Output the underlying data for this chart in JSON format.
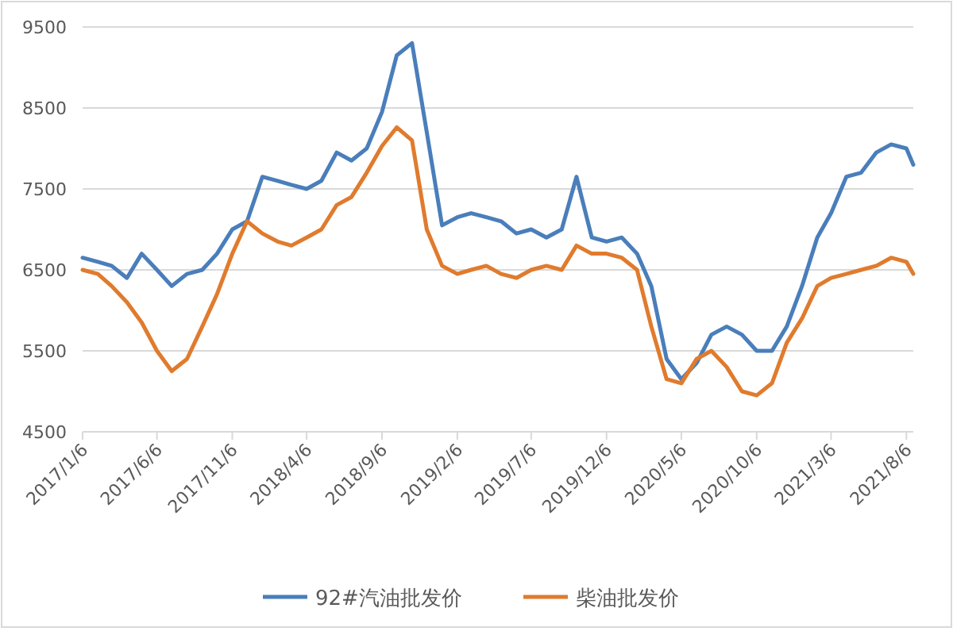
{
  "chart_data": {
    "type": "line",
    "x": [
      "2017-01-06",
      "2017-02-06",
      "2017-03-06",
      "2017-04-06",
      "2017-05-06",
      "2017-06-06",
      "2017-07-06",
      "2017-08-06",
      "2017-09-06",
      "2017-10-06",
      "2017-11-06",
      "2017-12-06",
      "2018-01-06",
      "2018-02-06",
      "2018-03-06",
      "2018-04-06",
      "2018-05-06",
      "2018-06-06",
      "2018-07-06",
      "2018-08-06",
      "2018-09-06",
      "2018-10-06",
      "2018-11-06",
      "2018-12-06",
      "2019-01-06",
      "2019-02-06",
      "2019-03-06",
      "2019-04-06",
      "2019-05-06",
      "2019-06-06",
      "2019-07-06",
      "2019-08-06",
      "2019-09-06",
      "2019-10-06",
      "2019-11-06",
      "2019-12-06",
      "2020-01-06",
      "2020-02-06",
      "2020-03-06",
      "2020-04-06",
      "2020-05-06",
      "2020-06-06",
      "2020-07-06",
      "2020-08-06",
      "2020-09-06",
      "2020-10-06",
      "2020-11-06",
      "2020-12-06",
      "2021-01-06",
      "2021-02-06",
      "2021-03-06",
      "2021-04-06",
      "2021-05-06",
      "2021-06-06",
      "2021-07-06",
      "2021-08-06",
      "2021-08-20"
    ],
    "series": [
      {
        "name": "92#汽油批发价",
        "color": "#4a7ebb",
        "values": [
          6650,
          6600,
          6550,
          6400,
          6700,
          6500,
          6300,
          6450,
          6500,
          6700,
          7000,
          7100,
          7650,
          7600,
          7550,
          7500,
          7600,
          7950,
          7850,
          8000,
          8450,
          9150,
          9300,
          8200,
          7050,
          7150,
          7200,
          7150,
          7100,
          6950,
          7000,
          6900,
          7000,
          7650,
          6900,
          6850,
          6900,
          6700,
          6300,
          5400,
          5150,
          5350,
          5700,
          5800,
          5700,
          5500,
          5500,
          5800,
          6300,
          6900,
          7200,
          7650,
          7700,
          7950,
          8050,
          8000,
          7800
        ]
      },
      {
        "name": "柴油批发价",
        "color": "#e07b2e",
        "values": [
          6500,
          6450,
          6300,
          6100,
          5850,
          5500,
          5250,
          5400,
          5800,
          6200,
          6700,
          7100,
          6950,
          6850,
          6800,
          6900,
          7000,
          7300,
          7400,
          7700,
          8030,
          8260,
          8100,
          7000,
          6550,
          6450,
          6500,
          6550,
          6450,
          6400,
          6500,
          6550,
          6500,
          6800,
          6700,
          6700,
          6650,
          6500,
          5800,
          5150,
          5100,
          5400,
          5500,
          5300,
          5000,
          4950,
          5100,
          5600,
          5900,
          6300,
          6400,
          6450,
          6500,
          6550,
          6650,
          6600,
          6450
        ]
      }
    ],
    "xlim": [
      "2017-01-06",
      "2021-08-20"
    ],
    "xticks": [
      {
        "value": "2017-01-06",
        "label": "2017/1/6"
      },
      {
        "value": "2017-06-06",
        "label": "2017/6/6"
      },
      {
        "value": "2017-11-06",
        "label": "2017/11/6"
      },
      {
        "value": "2018-04-06",
        "label": "2018/4/6"
      },
      {
        "value": "2018-09-06",
        "label": "2018/9/6"
      },
      {
        "value": "2019-02-06",
        "label": "2019/2/6"
      },
      {
        "value": "2019-07-06",
        "label": "2019/7/6"
      },
      {
        "value": "2019-12-06",
        "label": "2019/12/6"
      },
      {
        "value": "2020-05-06",
        "label": "2020/5/6"
      },
      {
        "value": "2020-10-06",
        "label": "2020/10/6"
      },
      {
        "value": "2021-03-06",
        "label": "2021/3/6"
      },
      {
        "value": "2021-08-06",
        "label": "2021/8/6"
      }
    ],
    "ylim": [
      4500,
      9500
    ],
    "yticks": [
      4500,
      5500,
      6500,
      7500,
      8500,
      9500
    ],
    "grid": "y",
    "legend": "bottom",
    "marker": "none",
    "line_style": "solid"
  }
}
